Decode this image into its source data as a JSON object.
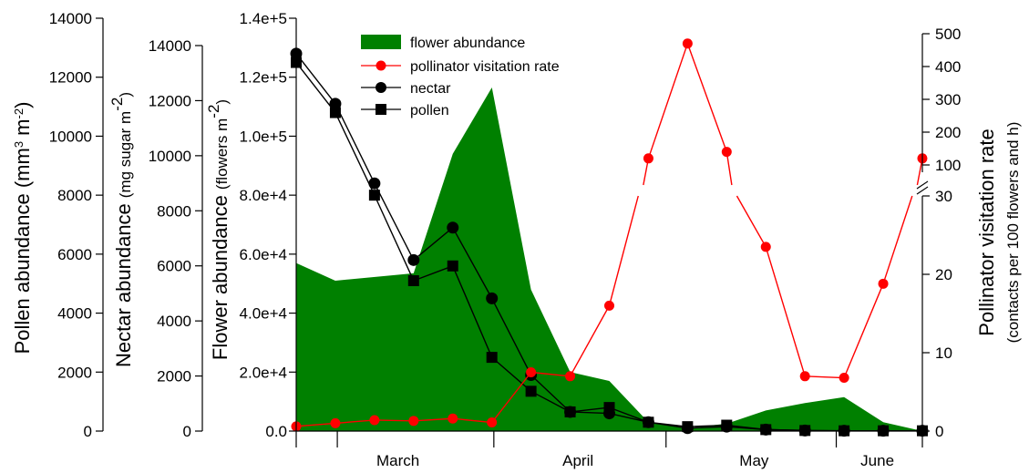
{
  "chart_data": {
    "type": "line",
    "title": "",
    "colors": {
      "flower_fill": "#008000",
      "visitation": "#ff0000",
      "nectar": "#000000",
      "pollen": "#000000"
    },
    "x_month_labels": [
      "March",
      "April",
      "May",
      "June"
    ],
    "axes": {
      "pollen": {
        "label_main": "Pollen abundance (mm",
        "label_sup1": "3",
        "label_mid": " m",
        "label_sup2": "-2",
        "label_end": ")",
        "range": [
          0,
          14000
        ],
        "ticks": [
          "0",
          "2000",
          "4000",
          "6000",
          "8000",
          "10000",
          "12000",
          "14000"
        ]
      },
      "nectar": {
        "label_main": "Nectar abundance",
        "label_unit": "(mg sugar m",
        "label_sup": "-2",
        "label_end": ")",
        "range": [
          0,
          14000
        ],
        "ticks": [
          "0",
          "2000",
          "4000",
          "6000",
          "8000",
          "10000",
          "12000",
          "14000"
        ]
      },
      "flower": {
        "label_main": "Flower abundance",
        "label_unit": "(flowers m",
        "label_sup": "-2",
        "label_end": ")",
        "range": [
          0,
          140000
        ],
        "ticks": [
          "0.0",
          "2.0e+4",
          "4.0e+4",
          "6.0e+4",
          "8.0e+4",
          "1.0e+5",
          "1.2e+5",
          "1.4e+5"
        ]
      },
      "visitation": {
        "label_main": "Pollinator visitation rate",
        "label_sub": "(contacts per 100 flowers and h)",
        "lower_range": [
          0,
          30
        ],
        "lower_ticks": [
          "0",
          "10",
          "20",
          "30"
        ],
        "upper_range": [
          100,
          500
        ],
        "upper_ticks": [
          "100",
          "200",
          "300",
          "400",
          "500"
        ],
        "axis_break": true
      }
    },
    "legend": [
      {
        "label": "flower abundance",
        "kind": "area"
      },
      {
        "label": "pollinator visitation rate",
        "kind": "circle-red"
      },
      {
        "label": "nectar",
        "kind": "circle-black"
      },
      {
        "label": "pollen",
        "kind": "square-black"
      }
    ],
    "series": {
      "flower_abundance": {
        "x": [
          0,
          1,
          3,
          4,
          5,
          6,
          7,
          8,
          9,
          10,
          11,
          12,
          13,
          14,
          15,
          16
        ],
        "values": [
          57000,
          51000,
          53500,
          94000,
          116500,
          48000,
          20000,
          17000,
          3000,
          1000,
          2500,
          7000,
          9500,
          11500,
          3000,
          0
        ]
      },
      "pollinator_visitation_rate": {
        "x": [
          0,
          1,
          2,
          3,
          4,
          5,
          6,
          7,
          8,
          9,
          10,
          11,
          12,
          13,
          14,
          15,
          16
        ],
        "values": [
          0.6,
          1.0,
          1.4,
          1.3,
          1.6,
          1.1,
          7.5,
          7.0,
          16.0,
          120,
          470,
          140,
          23.5,
          7.0,
          6.8,
          18.8,
          120
        ],
        "note_upper_gaps": true
      },
      "nectar": {
        "x": [
          0,
          1,
          2,
          3,
          4,
          5,
          6,
          7,
          8,
          9,
          10,
          11,
          12,
          13,
          14,
          15,
          16
        ],
        "values": [
          12800,
          11100,
          8400,
          5800,
          6900,
          4500,
          1900,
          650,
          600,
          300,
          100,
          150,
          50,
          20,
          10,
          10,
          10
        ]
      },
      "pollen": {
        "x": [
          0,
          1,
          2,
          3,
          4,
          5,
          6,
          7,
          8,
          9,
          10,
          11,
          12,
          13,
          14,
          15,
          16
        ],
        "values": [
          12500,
          10800,
          8000,
          5100,
          5600,
          2500,
          1350,
          650,
          800,
          300,
          150,
          200,
          50,
          20,
          10,
          10,
          10
        ]
      }
    }
  }
}
